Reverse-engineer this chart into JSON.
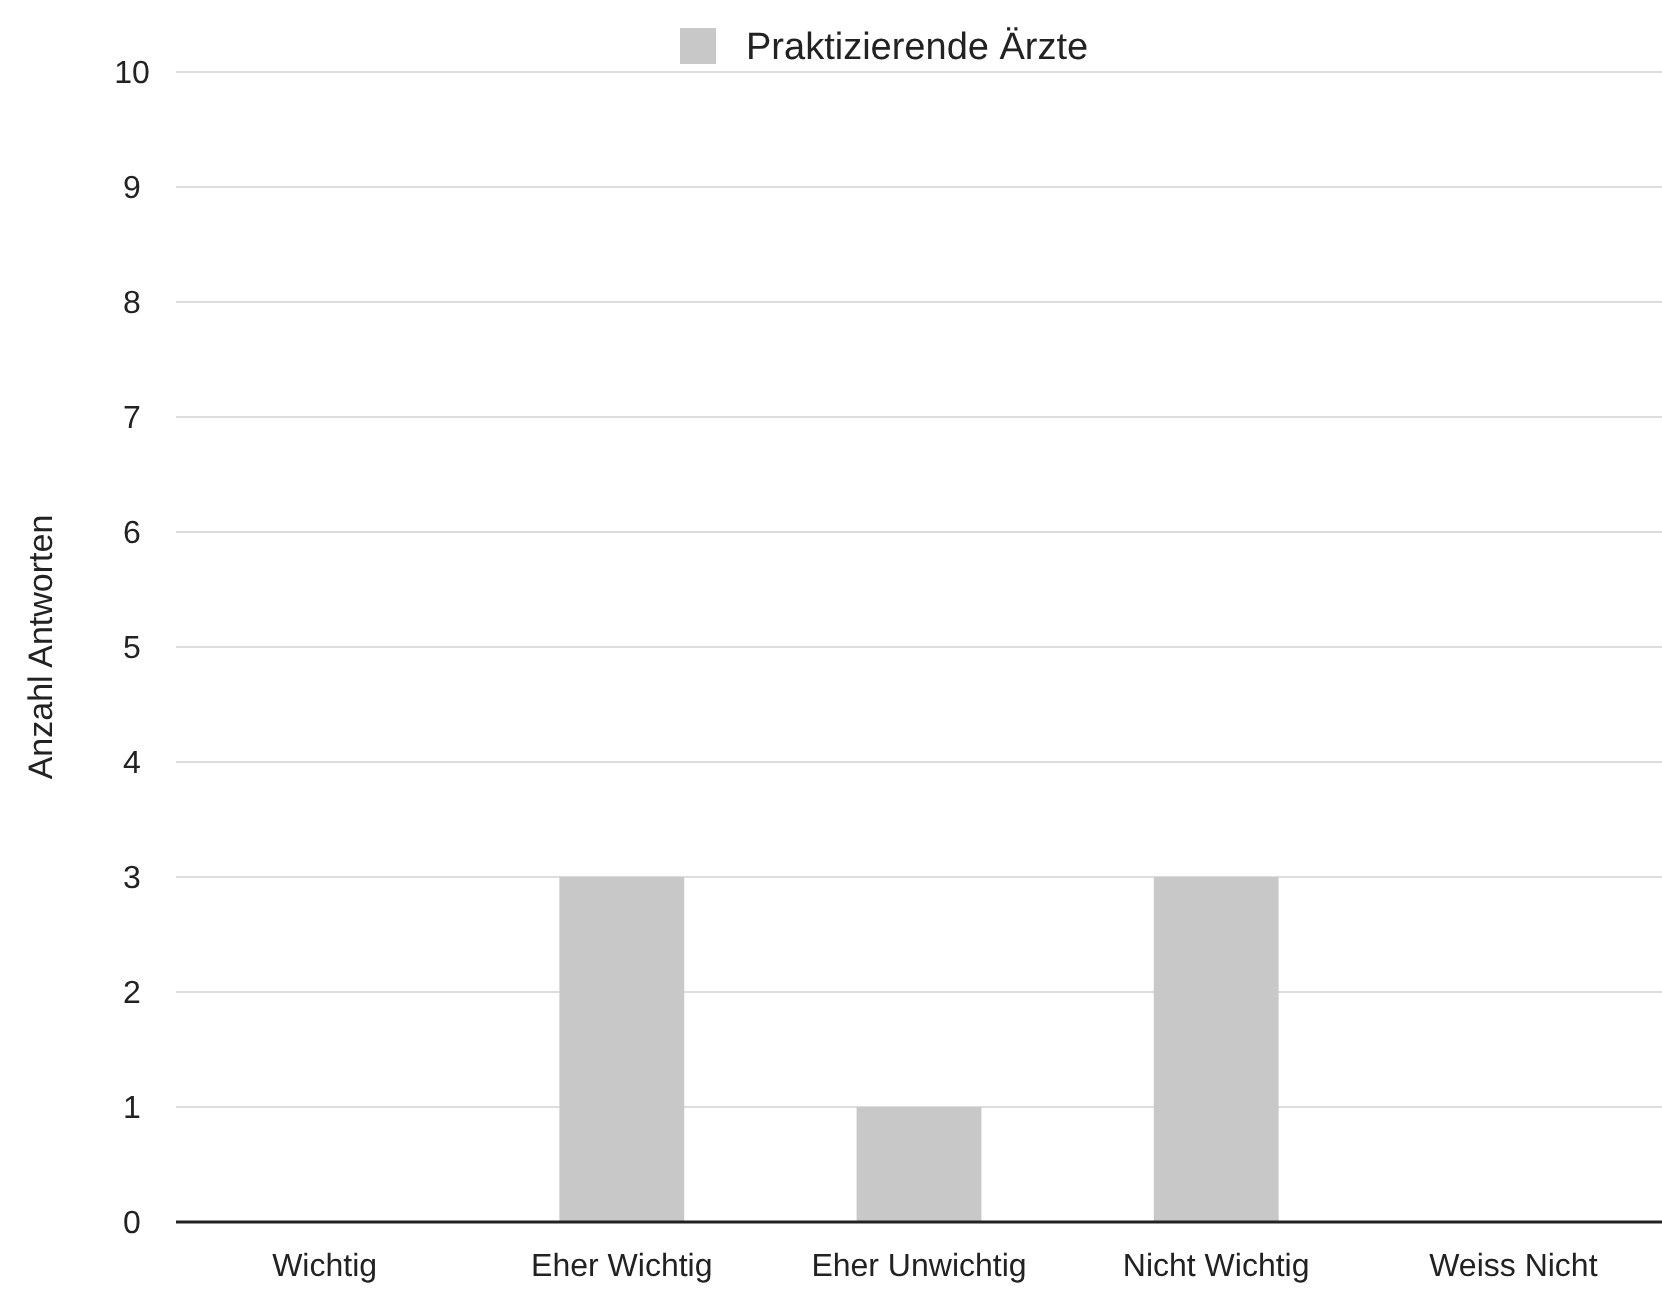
{
  "chart_data": {
    "type": "bar",
    "ylabel": "Anzahl Antworten",
    "categories": [
      "Wichtig",
      "Eher Wichtig",
      "Eher Unwichtig",
      "Nicht Wichtig",
      "Weiss Nicht"
    ],
    "series": [
      {
        "name": "Praktizierende Ärzte",
        "color": "#c8c8c8",
        "values": [
          0,
          3,
          1,
          3,
          0
        ]
      }
    ],
    "ylim": [
      0,
      10
    ],
    "yticks": [
      0,
      1,
      2,
      3,
      4,
      5,
      6,
      7,
      8,
      9,
      10
    ],
    "grid": "y",
    "legend": "top"
  }
}
